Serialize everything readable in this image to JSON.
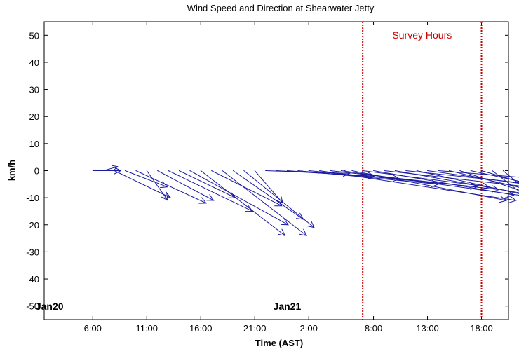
{
  "chart_data": {
    "type": "quiver",
    "title": "Wind Speed and Direction at Shearwater Jetty",
    "xlabel": "Time (AST)",
    "ylabel": "km/h",
    "ylim": [
      -55,
      55
    ],
    "yticks": [
      50,
      40,
      30,
      20,
      10,
      0,
      -10,
      -20,
      -30,
      -40,
      -50
    ],
    "xticks": [
      "6:00",
      "11:00",
      "16:00",
      "21:00",
      "2:00",
      "8:00",
      "13:00",
      "18:00"
    ],
    "day_labels": [
      {
        "text": "Jan20",
        "at": "Jan20 2:00"
      },
      {
        "text": "Jan21",
        "at": "Jan21 0:00"
      }
    ],
    "survey": {
      "label": "Survey Hours",
      "start": "Jan21 7:00",
      "end": "Jan21 18:00",
      "color": "#cc0000"
    },
    "arrow_color": "#1a1aa0",
    "series": [
      {
        "values": [
          {
            "t": "Jan20 6:00",
            "u": 2,
            "v": 0
          },
          {
            "t": "Jan20 7:00",
            "u": 1,
            "v": 1.5
          },
          {
            "t": "Jan20 8:00",
            "u": 4,
            "v": -10
          },
          {
            "t": "Jan20 9:00",
            "u": 3,
            "v": -6
          },
          {
            "t": "Jan20 10:00",
            "u": 5,
            "v": -12
          },
          {
            "t": "Jan20 11:00",
            "u": 1.5,
            "v": -11
          },
          {
            "t": "Jan20 12:00",
            "u": 4,
            "v": -11
          },
          {
            "t": "Jan20 13:00",
            "u": 6,
            "v": -15
          },
          {
            "t": "Jan20 14:00",
            "u": 4,
            "v": -10
          },
          {
            "t": "Jan20 15:00",
            "u": 7,
            "v": -20
          },
          {
            "t": "Jan20 16:00",
            "u": 6,
            "v": -24
          },
          {
            "t": "Jan20 17:00",
            "u": 5,
            "v": -13
          },
          {
            "t": "Jan20 18:00",
            "u": 6,
            "v": -24
          },
          {
            "t": "Jan20 19:00",
            "u": 5,
            "v": -18
          },
          {
            "t": "Jan20 20:00",
            "u": 5,
            "v": -21
          },
          {
            "t": "Jan20 21:00",
            "u": 2,
            "v": -12
          },
          {
            "t": "Jan20 22:00",
            "u": 6,
            "v": -1
          },
          {
            "t": "Jan20 23:00",
            "u": 7,
            "v": -2
          },
          {
            "t": "Jan21 0:00",
            "u": 8,
            "v": -3
          },
          {
            "t": "Jan21 1:00",
            "u": 10,
            "v": -5
          },
          {
            "t": "Jan21 2:00",
            "u": 12,
            "v": -6
          },
          {
            "t": "Jan21 3:00",
            "u": 14,
            "v": -11
          },
          {
            "t": "Jan21 4:00",
            "u": 12,
            "v": -7
          },
          {
            "t": "Jan21 5:00",
            "u": 14,
            "v": -10
          },
          {
            "t": "Jan21 6:00",
            "u": 11,
            "v": -11
          },
          {
            "t": "Jan21 7:00",
            "u": 9,
            "v": -6
          },
          {
            "t": "Jan21 8:00",
            "u": 10,
            "v": -9
          },
          {
            "t": "Jan21 9:00",
            "u": 12,
            "v": -7
          },
          {
            "t": "Jan21 10:00",
            "u": 13,
            "v": -12
          },
          {
            "t": "Jan21 11:00",
            "u": 11,
            "v": -6
          },
          {
            "t": "Jan21 12:00",
            "u": 12,
            "v": -14
          },
          {
            "t": "Jan21 13:00",
            "u": 14,
            "v": -10
          },
          {
            "t": "Jan21 14:00",
            "u": 12,
            "v": -5
          },
          {
            "t": "Jan21 15:00",
            "u": 13,
            "v": -16
          },
          {
            "t": "Jan21 16:00",
            "u": 10,
            "v": -17
          },
          {
            "t": "Jan21 17:00",
            "u": 8,
            "v": -9
          },
          {
            "t": "Jan21 18:00",
            "u": 8,
            "v": -12
          },
          {
            "t": "Jan21 19:00",
            "u": 5,
            "v": -20
          },
          {
            "t": "Jan21 20:00",
            "u": 3,
            "v": -13
          }
        ]
      }
    ]
  }
}
